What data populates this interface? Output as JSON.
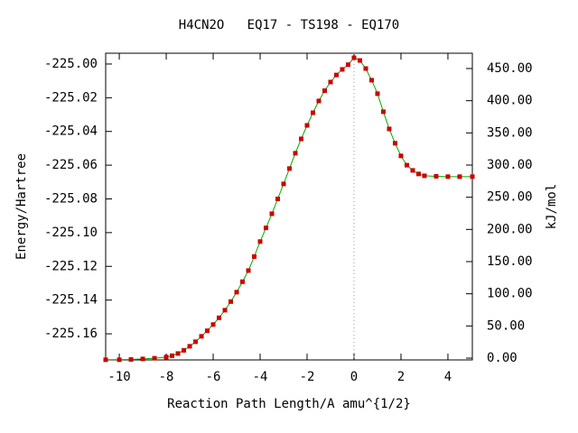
{
  "chart_data": {
    "type": "line",
    "title": "H4CN2O   EQ17 - TS198 - EQ170",
    "x_label": "Reaction Path Length/A amu^{1/2}",
    "y_label": "Energy/Hartree",
    "y2_label": "kJ/mol",
    "x": [
      -10.58,
      -10,
      -9.5,
      -9,
      -8.5,
      -8,
      -7.75,
      -7.5,
      -7.25,
      -7,
      -6.75,
      -6.5,
      -6.25,
      -6,
      -5.75,
      -5.5,
      -5.25,
      -5,
      -4.75,
      -4.5,
      -4.25,
      -4,
      -3.75,
      -3.5,
      -3.25,
      -3,
      -2.75,
      -2.5,
      -2.25,
      -2,
      -1.75,
      -1.5,
      -1.25,
      -1,
      -0.75,
      -0.5,
      -0.25,
      0,
      0.25,
      0.5,
      0.75,
      1,
      1.25,
      1.5,
      1.75,
      2,
      2.25,
      2.5,
      2.75,
      3,
      3.5,
      4,
      4.5,
      5.04
    ],
    "series": [
      {
        "name": "Energy",
        "color": "#cc0000",
        "line_color": "#00aa00",
        "values": [
          -225.1754,
          -225.1754,
          -225.1752,
          -225.1749,
          -225.1745,
          -225.1738,
          -225.173,
          -225.1717,
          -225.1698,
          -225.1674,
          -225.1647,
          -225.1615,
          -225.1582,
          -225.1545,
          -225.1505,
          -225.146,
          -225.1409,
          -225.1353,
          -225.1291,
          -225.1225,
          -225.1142,
          -225.1053,
          -225.0972,
          -225.0888,
          -225.08,
          -225.0711,
          -225.062,
          -225.0529,
          -225.0444,
          -225.0364,
          -225.0289,
          -225.0219,
          -225.0158,
          -225.0107,
          -225.0065,
          -225.0032,
          -225.0004,
          -224.9963,
          -224.9979,
          -225.0027,
          -225.0096,
          -225.0176,
          -225.0283,
          -225.0385,
          -225.047,
          -225.0545,
          -225.06,
          -225.0631,
          -225.0652,
          -225.0663,
          -225.0666,
          -225.0668,
          -225.0668,
          -225.0668
        ]
      }
    ],
    "vlines": [
      0
    ],
    "xlim": [
      -10.58,
      5.04
    ],
    "ylim": [
      -225.1755,
      -224.9936
    ],
    "y2lim": [
      -2.8,
      473.8
    ],
    "xticks": [
      -10,
      -8,
      -6,
      -4,
      -2,
      0,
      2,
      4
    ],
    "yticks": [
      {
        "value": -225.0,
        "label": "-225.00"
      },
      -225.02,
      -225.04,
      -225.06,
      -225.08,
      {
        "value": -225.1,
        "label": "-225.10"
      },
      -225.12,
      -225.14,
      -225.16
    ],
    "y2ticks": [
      {
        "value": 0,
        "label": "0.00"
      },
      {
        "value": 50,
        "label": "50.00"
      },
      {
        "value": 100,
        "label": "100.00"
      },
      {
        "value": 150,
        "label": "150.00"
      },
      {
        "value": 200,
        "label": "200.00"
      },
      {
        "value": 250,
        "label": "250.00"
      },
      {
        "value": 300,
        "label": "300.00"
      },
      {
        "value": 350,
        "label": "350.00"
      },
      {
        "value": 400,
        "label": "400.00"
      },
      {
        "value": 450,
        "label": "450.00"
      }
    ]
  }
}
